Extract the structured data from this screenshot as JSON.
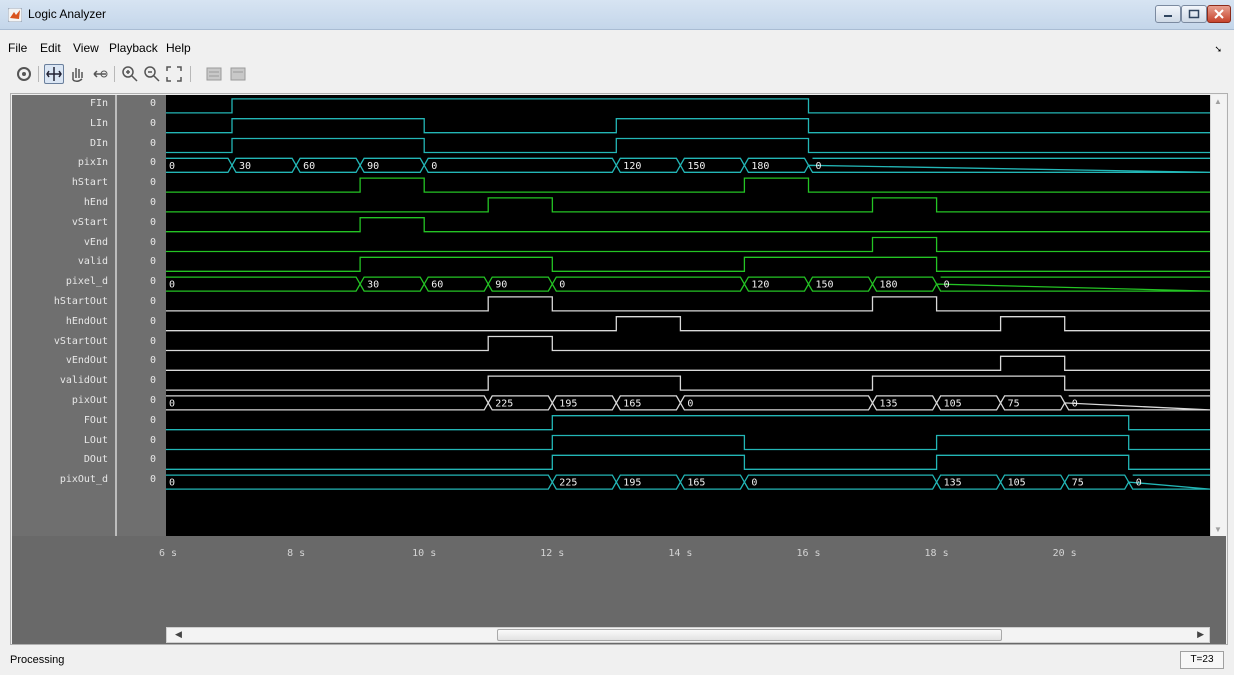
{
  "window": {
    "title": "Logic Analyzer"
  },
  "menu": [
    "File",
    "Edit",
    "View",
    "Playback",
    "Help"
  ],
  "toolbar": {
    "buttons": [
      {
        "name": "settings-icon",
        "glyph": "⚙"
      },
      {
        "name": "cursor-icon",
        "glyph": "✥",
        "active": true
      },
      {
        "name": "pan-hand-icon",
        "glyph": "✋"
      },
      {
        "name": "zoom-x-icon",
        "glyph": "⇤"
      },
      {
        "name": "zoom-in-icon",
        "glyph": "⊕"
      },
      {
        "name": "zoom-out-icon",
        "glyph": "⊖"
      },
      {
        "name": "fit-to-view-icon",
        "glyph": "⛶"
      },
      {
        "name": "add-trigger-icon",
        "glyph": "▦"
      },
      {
        "name": "remove-trigger-icon",
        "glyph": "▦"
      }
    ]
  },
  "time_axis": {
    "start": 6,
    "end": 22.3,
    "ticks": [
      "6 s",
      "8 s",
      "10 s",
      "12 s",
      "14 s",
      "16 s",
      "18 s",
      "20 s"
    ]
  },
  "colors": {
    "teal": "#23b6b6",
    "green": "#24c424",
    "white": "#d9d9d9"
  },
  "signals": [
    {
      "name": "FIn",
      "value": "0",
      "type": "bit",
      "color": "teal",
      "edges": [
        0,
        7,
        16
      ],
      "start": 0
    },
    {
      "name": "LIn",
      "value": "0",
      "type": "bit",
      "color": "teal",
      "edges": [
        0,
        7,
        10,
        13,
        16
      ],
      "start": 0
    },
    {
      "name": "DIn",
      "value": "0",
      "type": "bit",
      "color": "teal",
      "edges": [
        0,
        7,
        10,
        13,
        16
      ],
      "start": 0
    },
    {
      "name": "pixIn",
      "value": "0",
      "type": "bus",
      "color": "teal",
      "segments": [
        [
          6,
          "0"
        ],
        [
          7,
          "30"
        ],
        [
          8,
          "60"
        ],
        [
          9,
          "90"
        ],
        [
          10,
          "0"
        ],
        [
          13,
          "120"
        ],
        [
          14,
          "150"
        ],
        [
          15,
          "180"
        ],
        [
          16,
          "0"
        ]
      ]
    },
    {
      "name": "hStart",
      "value": "0",
      "type": "bit",
      "color": "green",
      "edges": [
        9,
        10,
        15,
        16
      ],
      "start": 0
    },
    {
      "name": "hEnd",
      "value": "0",
      "type": "bit",
      "color": "green",
      "edges": [
        11,
        12,
        17,
        18
      ],
      "start": 0
    },
    {
      "name": "vStart",
      "value": "0",
      "type": "bit",
      "color": "green",
      "edges": [
        9,
        10
      ],
      "start": 0
    },
    {
      "name": "vEnd",
      "value": "0",
      "type": "bit",
      "color": "green",
      "edges": [
        17,
        18
      ],
      "start": 0
    },
    {
      "name": "valid",
      "value": "0",
      "type": "bit",
      "color": "green",
      "edges": [
        9,
        12,
        15,
        18
      ],
      "start": 0
    },
    {
      "name": "pixel_d",
      "value": "0",
      "type": "bus",
      "color": "green",
      "segments": [
        [
          6,
          "0"
        ],
        [
          9,
          "30"
        ],
        [
          10,
          "60"
        ],
        [
          11,
          "90"
        ],
        [
          12,
          "0"
        ],
        [
          15,
          "120"
        ],
        [
          16,
          "150"
        ],
        [
          17,
          "180"
        ],
        [
          18,
          "0"
        ]
      ]
    },
    {
      "name": "hStartOut",
      "value": "0",
      "type": "bit",
      "color": "white",
      "edges": [
        11,
        12,
        17,
        18
      ],
      "start": 0
    },
    {
      "name": "hEndOut",
      "value": "0",
      "type": "bit",
      "color": "white",
      "edges": [
        13,
        14,
        19,
        20
      ],
      "start": 0
    },
    {
      "name": "vStartOut",
      "value": "0",
      "type": "bit",
      "color": "white",
      "edges": [
        11,
        12
      ],
      "start": 0
    },
    {
      "name": "vEndOut",
      "value": "0",
      "type": "bit",
      "color": "white",
      "edges": [
        19,
        20
      ],
      "start": 0
    },
    {
      "name": "validOut",
      "value": "0",
      "type": "bit",
      "color": "white",
      "edges": [
        11,
        14,
        17,
        20
      ],
      "start": 0
    },
    {
      "name": "pixOut",
      "value": "0",
      "type": "bus",
      "color": "white",
      "segments": [
        [
          6,
          "0"
        ],
        [
          11,
          "225"
        ],
        [
          12,
          "195"
        ],
        [
          13,
          "165"
        ],
        [
          14,
          "0"
        ],
        [
          17,
          "135"
        ],
        [
          18,
          "105"
        ],
        [
          19,
          "75"
        ],
        [
          20,
          "0"
        ]
      ]
    },
    {
      "name": "FOut",
      "value": "0",
      "type": "bit",
      "color": "teal",
      "edges": [
        12,
        21
      ],
      "start": 0
    },
    {
      "name": "LOut",
      "value": "0",
      "type": "bit",
      "color": "teal",
      "edges": [
        12,
        15,
        18,
        21
      ],
      "start": 0
    },
    {
      "name": "DOut",
      "value": "0",
      "type": "bit",
      "color": "teal",
      "edges": [
        12,
        15,
        18,
        21
      ],
      "start": 0
    },
    {
      "name": "pixOut_d",
      "value": "0",
      "type": "bus",
      "color": "teal",
      "segments": [
        [
          6,
          "0"
        ],
        [
          12,
          "225"
        ],
        [
          13,
          "195"
        ],
        [
          14,
          "165"
        ],
        [
          15,
          "0"
        ],
        [
          18,
          "135"
        ],
        [
          19,
          "105"
        ],
        [
          20,
          "75"
        ],
        [
          21,
          "0"
        ]
      ]
    }
  ],
  "status": {
    "text": "Processing",
    "time": "T=23"
  }
}
